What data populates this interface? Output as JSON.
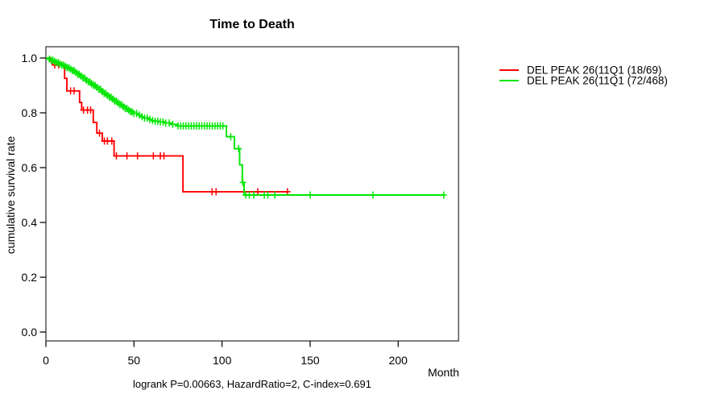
{
  "title": "Time to Death",
  "footer": "logrank P=0.00663, HazardRatio=2, C-index=0.691",
  "legend": {
    "items": [
      {
        "label": "DEL PEAK 26(11Q1 (18/69)",
        "color": "#ff0000"
      },
      {
        "label": "DEL PEAK 26(11Q1 (72/468)",
        "color": "#00e600"
      }
    ]
  },
  "chart_data": {
    "type": "line",
    "subtype": "kaplan-meier-step",
    "title": "Time to Death",
    "xlabel": "Month",
    "ylabel": "cumulative survival rate",
    "xlim": [
      0,
      234
    ],
    "ylim": [
      0,
      1.0
    ],
    "xticks": [
      0,
      50,
      100,
      150,
      200
    ],
    "yticks": [
      "0.0",
      "0.2",
      "0.4",
      "0.6",
      "0.8",
      "1.0"
    ],
    "grid": false,
    "legend_position": "right-outside",
    "series": [
      {
        "name": "DEL PEAK 26(11Q1 (18/69)",
        "slug": "red-group",
        "color": "#ff0000",
        "steps": [
          [
            0,
            1.0
          ],
          [
            2.7,
            0.99
          ],
          [
            3.8,
            0.975
          ],
          [
            10.6,
            0.926
          ],
          [
            11.9,
            0.88
          ],
          [
            19.1,
            0.838
          ],
          [
            20.3,
            0.81
          ],
          [
            26.9,
            0.765
          ],
          [
            28.9,
            0.726
          ],
          [
            32,
            0.697
          ],
          [
            38.7,
            0.643
          ],
          [
            77.8,
            0.512
          ]
        ],
        "end_month": 137.7,
        "censors": [
          5,
          7.2,
          14,
          16,
          21.3,
          23.6,
          25.4,
          30.4,
          33.2,
          34.9,
          37.4,
          40,
          46,
          52,
          61,
          65,
          67,
          94.3,
          96.6,
          120.3,
          137.1
        ]
      },
      {
        "name": "DEL PEAK 26(11Q1 (72/468)",
        "slug": "green-group",
        "color": "#00e600",
        "steps": [
          [
            0,
            1.0
          ],
          [
            1.5,
            0.996
          ],
          [
            3,
            0.992
          ],
          [
            4.5,
            0.987
          ],
          [
            6,
            0.983
          ],
          [
            7.5,
            0.979
          ],
          [
            9,
            0.974
          ],
          [
            10.5,
            0.97
          ],
          [
            12,
            0.965
          ],
          [
            13.5,
            0.96
          ],
          [
            15,
            0.954
          ],
          [
            16.5,
            0.948
          ],
          [
            18,
            0.941
          ],
          [
            19.5,
            0.934
          ],
          [
            21,
            0.927
          ],
          [
            22.5,
            0.92
          ],
          [
            24,
            0.913
          ],
          [
            25.5,
            0.906
          ],
          [
            27,
            0.9
          ],
          [
            28.5,
            0.893
          ],
          [
            30,
            0.886
          ],
          [
            31.5,
            0.878
          ],
          [
            33,
            0.871
          ],
          [
            34.5,
            0.864
          ],
          [
            36,
            0.857
          ],
          [
            37.5,
            0.85
          ],
          [
            39,
            0.843
          ],
          [
            40.5,
            0.836
          ],
          [
            42,
            0.83
          ],
          [
            43.5,
            0.823
          ],
          [
            45,
            0.816
          ],
          [
            46.5,
            0.81
          ],
          [
            48,
            0.804
          ],
          [
            50,
            0.798
          ],
          [
            52,
            0.792
          ],
          [
            54,
            0.786
          ],
          [
            56,
            0.781
          ],
          [
            58,
            0.776
          ],
          [
            60,
            0.772
          ],
          [
            62,
            0.769
          ],
          [
            65,
            0.767
          ],
          [
            68,
            0.763
          ],
          [
            71,
            0.758
          ],
          [
            74.5,
            0.752
          ],
          [
            102.5,
            0.713
          ],
          [
            107,
            0.669
          ],
          [
            110,
            0.61
          ],
          [
            111.5,
            0.546
          ],
          [
            112.5,
            0.5
          ]
        ],
        "end_month": 225.9,
        "censors": [
          2,
          3,
          4,
          5,
          6,
          7,
          8,
          9,
          10,
          11,
          12,
          13,
          14,
          15,
          16,
          17,
          18,
          19,
          20,
          21,
          22,
          23,
          24,
          25,
          26,
          27,
          28,
          29,
          30,
          31,
          32,
          33,
          34,
          35,
          36,
          37,
          38,
          39,
          40,
          41,
          42,
          43,
          44,
          45,
          46,
          47,
          48,
          49,
          50,
          51.5,
          53,
          54.5,
          56,
          57.5,
          59,
          60.5,
          62,
          63.5,
          65,
          66.5,
          68,
          70,
          72,
          75,
          76.5,
          78,
          79.5,
          81,
          82.5,
          84,
          85.5,
          87,
          88.5,
          90,
          91.5,
          93,
          94.5,
          96,
          97.5,
          99,
          100.5,
          104.9,
          109.4,
          111.8,
          113.5,
          115.5,
          118,
          124,
          126,
          130,
          150,
          185.7,
          225.9
        ]
      }
    ]
  }
}
